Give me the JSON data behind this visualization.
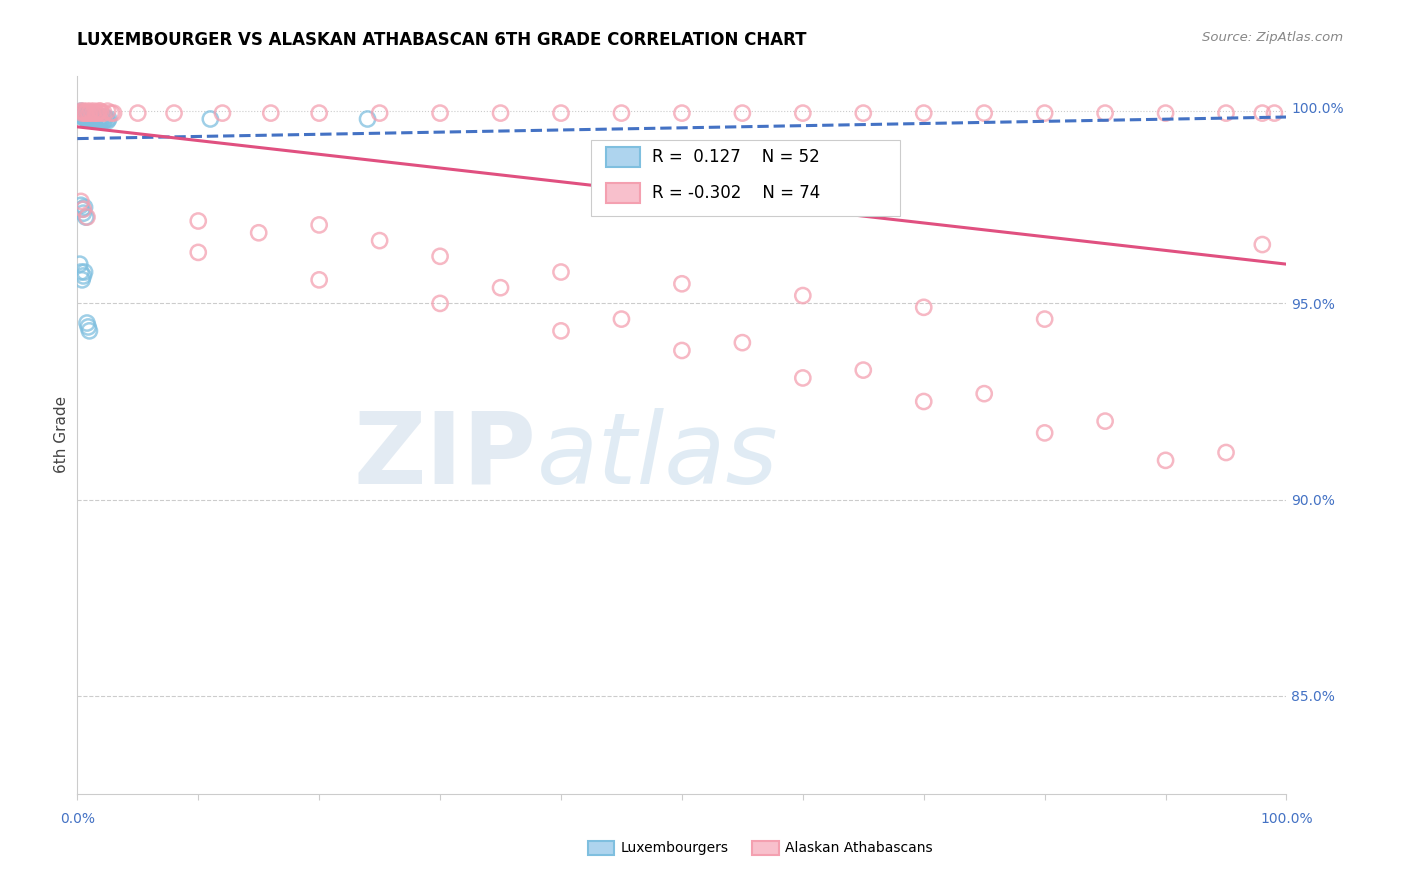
{
  "title": "LUXEMBOURGER VS ALASKAN ATHABASCAN 6TH GRADE CORRELATION CHART",
  "source": "Source: ZipAtlas.com",
  "ylabel": "6th Grade",
  "blue_R": 0.127,
  "blue_N": 52,
  "pink_R": -0.302,
  "pink_N": 74,
  "blue_color": "#7fbfdf",
  "pink_color": "#f4a0b0",
  "blue_line_color": "#4472c4",
  "pink_line_color": "#e05080",
  "legend_blue_label": "Luxembourgers",
  "legend_pink_label": "Alaskan Athabascans",
  "watermark_zip": "ZIP",
  "watermark_atlas": "atlas",
  "ytick_values": [
    0.85,
    0.9,
    0.95,
    1.0
  ],
  "ylim_low": 0.825,
  "ylim_high": 1.008,
  "blue_x": [
    0.002,
    0.003,
    0.003,
    0.004,
    0.004,
    0.005,
    0.005,
    0.006,
    0.006,
    0.007,
    0.007,
    0.008,
    0.008,
    0.009,
    0.009,
    0.01,
    0.01,
    0.011,
    0.011,
    0.012,
    0.012,
    0.013,
    0.013,
    0.014,
    0.014,
    0.015,
    0.016,
    0.017,
    0.018,
    0.019,
    0.02,
    0.021,
    0.022,
    0.023,
    0.024,
    0.025,
    0.026,
    0.003,
    0.004,
    0.005,
    0.006,
    0.007,
    0.002,
    0.003,
    0.004,
    0.005,
    0.006,
    0.11,
    0.24,
    0.008,
    0.009,
    0.01
  ],
  "blue_y": [
    0.9985,
    0.999,
    0.998,
    0.9975,
    0.9985,
    0.998,
    0.9975,
    0.9985,
    0.9975,
    0.998,
    0.997,
    0.9975,
    0.9985,
    0.998,
    0.997,
    0.998,
    0.9975,
    0.9985,
    0.997,
    0.9975,
    0.9985,
    0.998,
    0.997,
    0.9975,
    0.9965,
    0.997,
    0.9975,
    0.9965,
    0.997,
    0.9965,
    0.9975,
    0.997,
    0.9965,
    0.9975,
    0.997,
    0.9965,
    0.997,
    0.975,
    0.974,
    0.973,
    0.9745,
    0.972,
    0.96,
    0.958,
    0.956,
    0.957,
    0.958,
    0.997,
    0.997,
    0.945,
    0.944,
    0.943
  ],
  "pink_x": [
    0.003,
    0.004,
    0.005,
    0.006,
    0.007,
    0.008,
    0.009,
    0.01,
    0.011,
    0.012,
    0.013,
    0.014,
    0.015,
    0.016,
    0.017,
    0.018,
    0.019,
    0.02,
    0.022,
    0.025,
    0.028,
    0.03,
    0.05,
    0.08,
    0.12,
    0.16,
    0.2,
    0.25,
    0.3,
    0.35,
    0.4,
    0.45,
    0.5,
    0.55,
    0.6,
    0.65,
    0.7,
    0.75,
    0.8,
    0.85,
    0.9,
    0.95,
    0.98,
    0.99,
    0.1,
    0.15,
    0.2,
    0.25,
    0.3,
    0.4,
    0.5,
    0.6,
    0.7,
    0.8,
    0.1,
    0.2,
    0.3,
    0.4,
    0.5,
    0.6,
    0.7,
    0.8,
    0.9,
    0.98,
    0.35,
    0.45,
    0.55,
    0.65,
    0.75,
    0.85,
    0.95,
    0.003,
    0.005,
    0.008
  ],
  "pink_y": [
    0.999,
    0.9985,
    0.999,
    0.9985,
    0.9985,
    0.999,
    0.9985,
    0.9985,
    0.999,
    0.9985,
    0.9985,
    0.999,
    0.9985,
    0.9985,
    0.9985,
    0.999,
    0.999,
    0.9985,
    0.9985,
    0.999,
    0.9985,
    0.9985,
    0.9985,
    0.9985,
    0.9985,
    0.9985,
    0.9985,
    0.9985,
    0.9985,
    0.9985,
    0.9985,
    0.9985,
    0.9985,
    0.9985,
    0.9985,
    0.9985,
    0.9985,
    0.9985,
    0.9985,
    0.9985,
    0.9985,
    0.9985,
    0.9985,
    0.9985,
    0.971,
    0.968,
    0.97,
    0.966,
    0.962,
    0.958,
    0.955,
    0.952,
    0.949,
    0.946,
    0.963,
    0.956,
    0.95,
    0.943,
    0.938,
    0.931,
    0.925,
    0.917,
    0.91,
    0.965,
    0.954,
    0.946,
    0.94,
    0.933,
    0.927,
    0.92,
    0.912,
    0.976,
    0.974,
    0.972
  ]
}
